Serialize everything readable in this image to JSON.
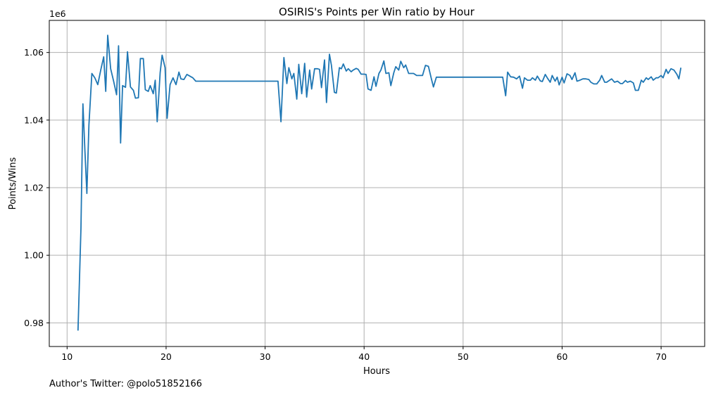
{
  "chart_data": {
    "type": "line",
    "title": "OSIRIS's Points per Win ratio by Hour",
    "xlabel": "Hours",
    "ylabel": "Points/Wins",
    "y_offset_label": "1e6",
    "xlim": [
      8.2,
      74.4
    ],
    "ylim": [
      0.973,
      1.0695
    ],
    "x_ticks": [
      10,
      20,
      30,
      40,
      50,
      60,
      70
    ],
    "x_tick_labels": [
      "10",
      "20",
      "30",
      "40",
      "50",
      "60",
      "70"
    ],
    "y_ticks": [
      0.98,
      1.0,
      1.02,
      1.04,
      1.06
    ],
    "y_tick_labels": [
      "0.98",
      "1.00",
      "1.02",
      "1.04",
      "1.06"
    ],
    "grid": true,
    "series": [
      {
        "color": "#1f77b4",
        "points": [
          [
            11.1,
            0.9777
          ],
          [
            11.4,
            1.008
          ],
          [
            11.6,
            1.0448
          ],
          [
            11.8,
            1.031
          ],
          [
            12.0,
            1.0183
          ],
          [
            12.2,
            1.0385
          ],
          [
            12.5,
            1.0538
          ],
          [
            12.8,
            1.0525
          ],
          [
            13.1,
            1.0505
          ],
          [
            13.4,
            1.0548
          ],
          [
            13.7,
            1.0587
          ],
          [
            13.9,
            1.0485
          ],
          [
            14.1,
            1.0651
          ],
          [
            14.4,
            1.0552
          ],
          [
            14.7,
            1.0515
          ],
          [
            15.0,
            1.0475
          ],
          [
            15.2,
            1.062
          ],
          [
            15.4,
            1.0332
          ],
          [
            15.6,
            1.0502
          ],
          [
            15.9,
            1.0497
          ],
          [
            16.1,
            1.0602
          ],
          [
            16.4,
            1.0498
          ],
          [
            16.7,
            1.0488
          ],
          [
            16.9,
            1.0465
          ],
          [
            17.2,
            1.0466
          ],
          [
            17.4,
            1.0582
          ],
          [
            17.7,
            1.0582
          ],
          [
            17.9,
            1.049
          ],
          [
            18.2,
            1.0485
          ],
          [
            18.4,
            1.0502
          ],
          [
            18.7,
            1.0478
          ],
          [
            18.9,
            1.0518
          ],
          [
            19.1,
            1.0395
          ],
          [
            19.4,
            1.054
          ],
          [
            19.6,
            1.0592
          ],
          [
            19.9,
            1.0555
          ],
          [
            20.1,
            1.0405
          ],
          [
            20.4,
            1.0505
          ],
          [
            20.7,
            1.0525
          ],
          [
            21.0,
            1.0505
          ],
          [
            21.3,
            1.0542
          ],
          [
            21.5,
            1.0522
          ],
          [
            21.8,
            1.052
          ],
          [
            22.1,
            1.0535
          ],
          [
            22.4,
            1.053
          ],
          [
            22.7,
            1.0525
          ],
          [
            23.0,
            1.0515
          ],
          [
            31.3,
            1.0515
          ],
          [
            31.6,
            1.0395
          ],
          [
            31.9,
            1.0585
          ],
          [
            32.2,
            1.0508
          ],
          [
            32.4,
            1.0555
          ],
          [
            32.7,
            1.0522
          ],
          [
            32.9,
            1.0538
          ],
          [
            33.2,
            1.0462
          ],
          [
            33.4,
            1.0565
          ],
          [
            33.7,
            1.0478
          ],
          [
            34.0,
            1.0568
          ],
          [
            34.2,
            1.0468
          ],
          [
            34.5,
            1.0548
          ],
          [
            34.7,
            1.0492
          ],
          [
            35.0,
            1.0552
          ],
          [
            35.3,
            1.0552
          ],
          [
            35.5,
            1.055
          ],
          [
            35.7,
            1.0496
          ],
          [
            36.0,
            1.0578
          ],
          [
            36.2,
            1.0452
          ],
          [
            36.5,
            1.0595
          ],
          [
            36.7,
            1.0562
          ],
          [
            37.0,
            1.0482
          ],
          [
            37.2,
            1.048
          ],
          [
            37.5,
            1.0555
          ],
          [
            37.7,
            1.0552
          ],
          [
            37.9,
            1.0566
          ],
          [
            38.2,
            1.0545
          ],
          [
            38.4,
            1.0552
          ],
          [
            38.7,
            1.0543
          ],
          [
            38.9,
            1.0548
          ],
          [
            39.2,
            1.0553
          ],
          [
            39.4,
            1.055
          ],
          [
            39.7,
            1.0536
          ],
          [
            40.0,
            1.0536
          ],
          [
            40.2,
            1.0535
          ],
          [
            40.4,
            1.0492
          ],
          [
            40.7,
            1.0488
          ],
          [
            41.0,
            1.0528
          ],
          [
            41.2,
            1.05
          ],
          [
            41.5,
            1.0538
          ],
          [
            41.7,
            1.0548
          ],
          [
            42.0,
            1.0575
          ],
          [
            42.2,
            1.0538
          ],
          [
            42.5,
            1.054
          ],
          [
            42.7,
            1.0502
          ],
          [
            43.0,
            1.054
          ],
          [
            43.2,
            1.0558
          ],
          [
            43.5,
            1.0548
          ],
          [
            43.7,
            1.0574
          ],
          [
            44.0,
            1.0555
          ],
          [
            44.2,
            1.0563
          ],
          [
            44.5,
            1.0538
          ],
          [
            44.8,
            1.0538
          ],
          [
            45.0,
            1.0538
          ],
          [
            45.3,
            1.0532
          ],
          [
            45.6,
            1.0532
          ],
          [
            45.9,
            1.0532
          ],
          [
            46.2,
            1.0562
          ],
          [
            46.5,
            1.0559
          ],
          [
            46.8,
            1.0522
          ],
          [
            47.0,
            1.0498
          ],
          [
            47.3,
            1.0527
          ],
          [
            54.0,
            1.0527
          ],
          [
            54.3,
            1.0472
          ],
          [
            54.5,
            1.0542
          ],
          [
            54.8,
            1.0528
          ],
          [
            55.1,
            1.0527
          ],
          [
            55.4,
            1.0522
          ],
          [
            55.7,
            1.053
          ],
          [
            56.0,
            1.0494
          ],
          [
            56.2,
            1.0525
          ],
          [
            56.5,
            1.0518
          ],
          [
            56.8,
            1.0518
          ],
          [
            57.0,
            1.0525
          ],
          [
            57.3,
            1.0518
          ],
          [
            57.5,
            1.053
          ],
          [
            57.8,
            1.0516
          ],
          [
            58.0,
            1.0514
          ],
          [
            58.3,
            1.0535
          ],
          [
            58.5,
            1.0525
          ],
          [
            58.8,
            1.0512
          ],
          [
            59.0,
            1.0532
          ],
          [
            59.3,
            1.0515
          ],
          [
            59.5,
            1.0527
          ],
          [
            59.7,
            1.0504
          ],
          [
            60.0,
            1.0527
          ],
          [
            60.2,
            1.051
          ],
          [
            60.5,
            1.0537
          ],
          [
            60.8,
            1.0532
          ],
          [
            61.0,
            1.052
          ],
          [
            61.3,
            1.054
          ],
          [
            61.5,
            1.0515
          ],
          [
            61.8,
            1.0518
          ],
          [
            62.1,
            1.0522
          ],
          [
            62.4,
            1.0522
          ],
          [
            62.7,
            1.052
          ],
          [
            62.9,
            1.0512
          ],
          [
            63.2,
            1.0507
          ],
          [
            63.5,
            1.0507
          ],
          [
            63.8,
            1.0518
          ],
          [
            64.0,
            1.0532
          ],
          [
            64.3,
            1.0512
          ],
          [
            64.5,
            1.0512
          ],
          [
            64.8,
            1.0518
          ],
          [
            65.0,
            1.0522
          ],
          [
            65.3,
            1.0512
          ],
          [
            65.6,
            1.0515
          ],
          [
            65.9,
            1.0508
          ],
          [
            66.1,
            1.0508
          ],
          [
            66.4,
            1.0517
          ],
          [
            66.6,
            1.0512
          ],
          [
            66.9,
            1.0515
          ],
          [
            67.2,
            1.051
          ],
          [
            67.4,
            1.0488
          ],
          [
            67.7,
            1.0488
          ],
          [
            68.0,
            1.0518
          ],
          [
            68.2,
            1.0512
          ],
          [
            68.5,
            1.0525
          ],
          [
            68.7,
            1.052
          ],
          [
            69.0,
            1.0528
          ],
          [
            69.2,
            1.0518
          ],
          [
            69.5,
            1.0525
          ],
          [
            69.7,
            1.0525
          ],
          [
            70.0,
            1.0532
          ],
          [
            70.2,
            1.0525
          ],
          [
            70.5,
            1.055
          ],
          [
            70.7,
            1.0538
          ],
          [
            71.0,
            1.0552
          ],
          [
            71.3,
            1.0548
          ],
          [
            71.6,
            1.0535
          ],
          [
            71.8,
            1.0522
          ],
          [
            72.0,
            1.0555
          ]
        ]
      }
    ]
  },
  "footer": {
    "author_note": "Author's Twitter: @polo51852166"
  }
}
